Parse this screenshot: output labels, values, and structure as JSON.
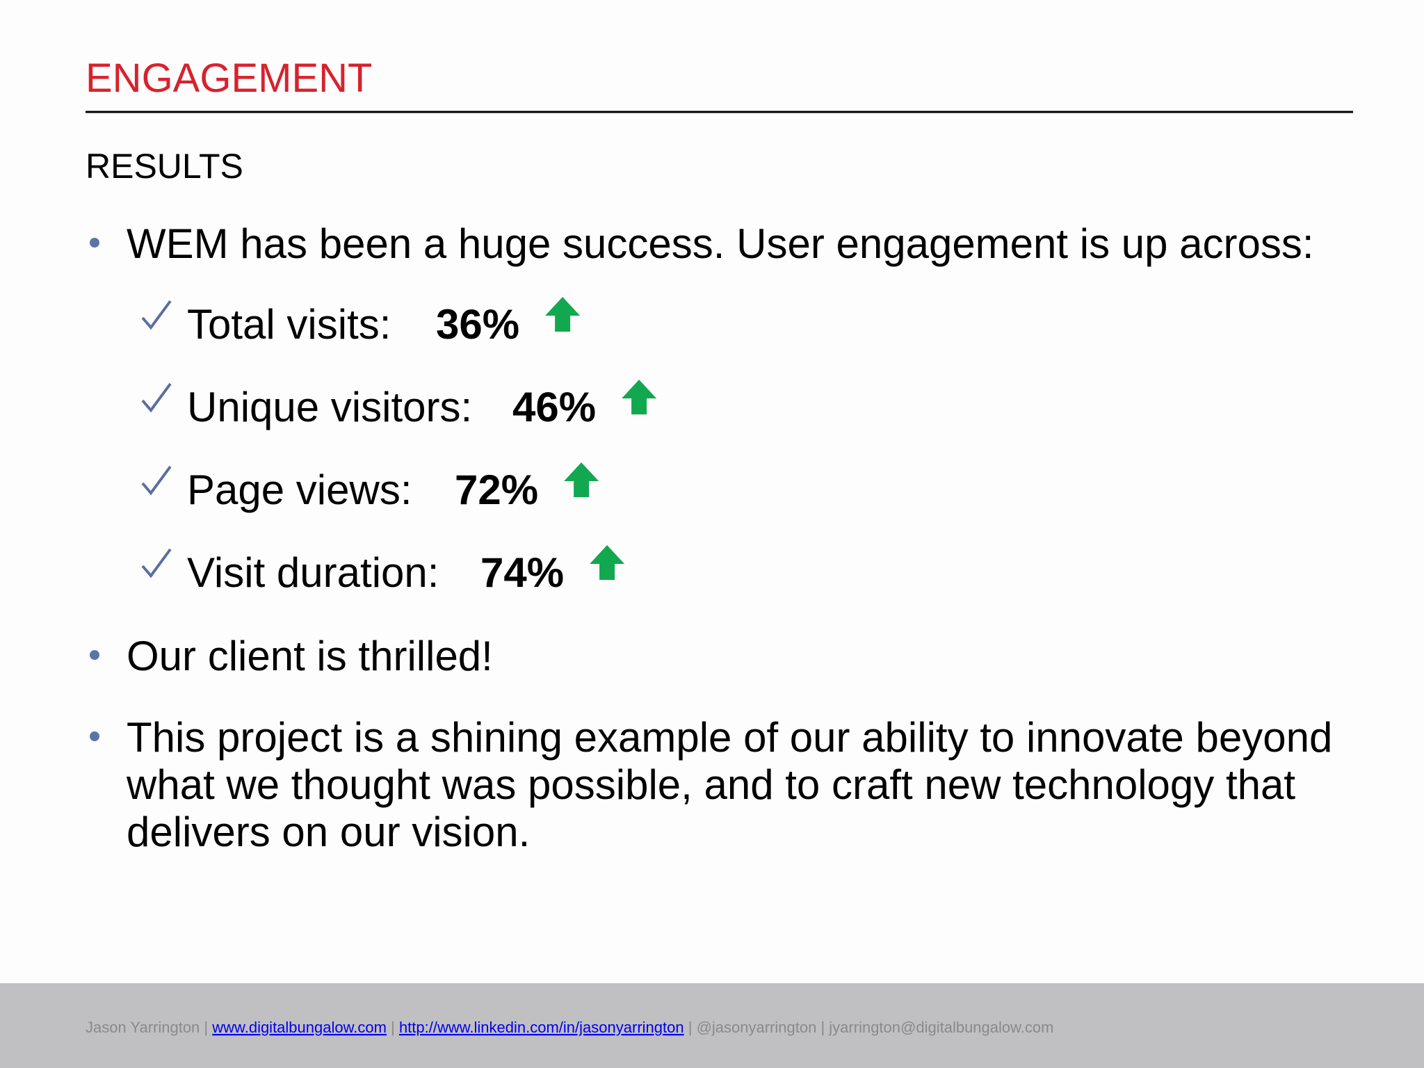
{
  "header": {
    "title": "ENGAGEMENT",
    "subtitle": "RESULTS"
  },
  "bullets": [
    {
      "text": "WEM has been a huge success. User engagement is up across:",
      "items": [
        {
          "label": "Total visits:",
          "value": "36%"
        },
        {
          "label": "Unique visitors:",
          "value": "46%"
        },
        {
          "label": "Page views:",
          "value": "72%"
        },
        {
          "label": "Visit duration:",
          "value": "74%"
        }
      ]
    },
    {
      "text": "Our client is thrilled!"
    },
    {
      "lines": [
        "This project is a shining example of our ability to innovate beyond",
        "what we thought was possible, and to craft new technology that",
        "delivers on our vision."
      ]
    }
  ],
  "footer": {
    "name": "Jason Yarrington",
    "separator": "|",
    "website": "www.digitalbungalow.com",
    "linkedin": "http://www.linkedin.com/in/jasonyarrington",
    "twitter": "@jasonyarrington",
    "email": "jyarrington@digitalbungalow.com"
  }
}
